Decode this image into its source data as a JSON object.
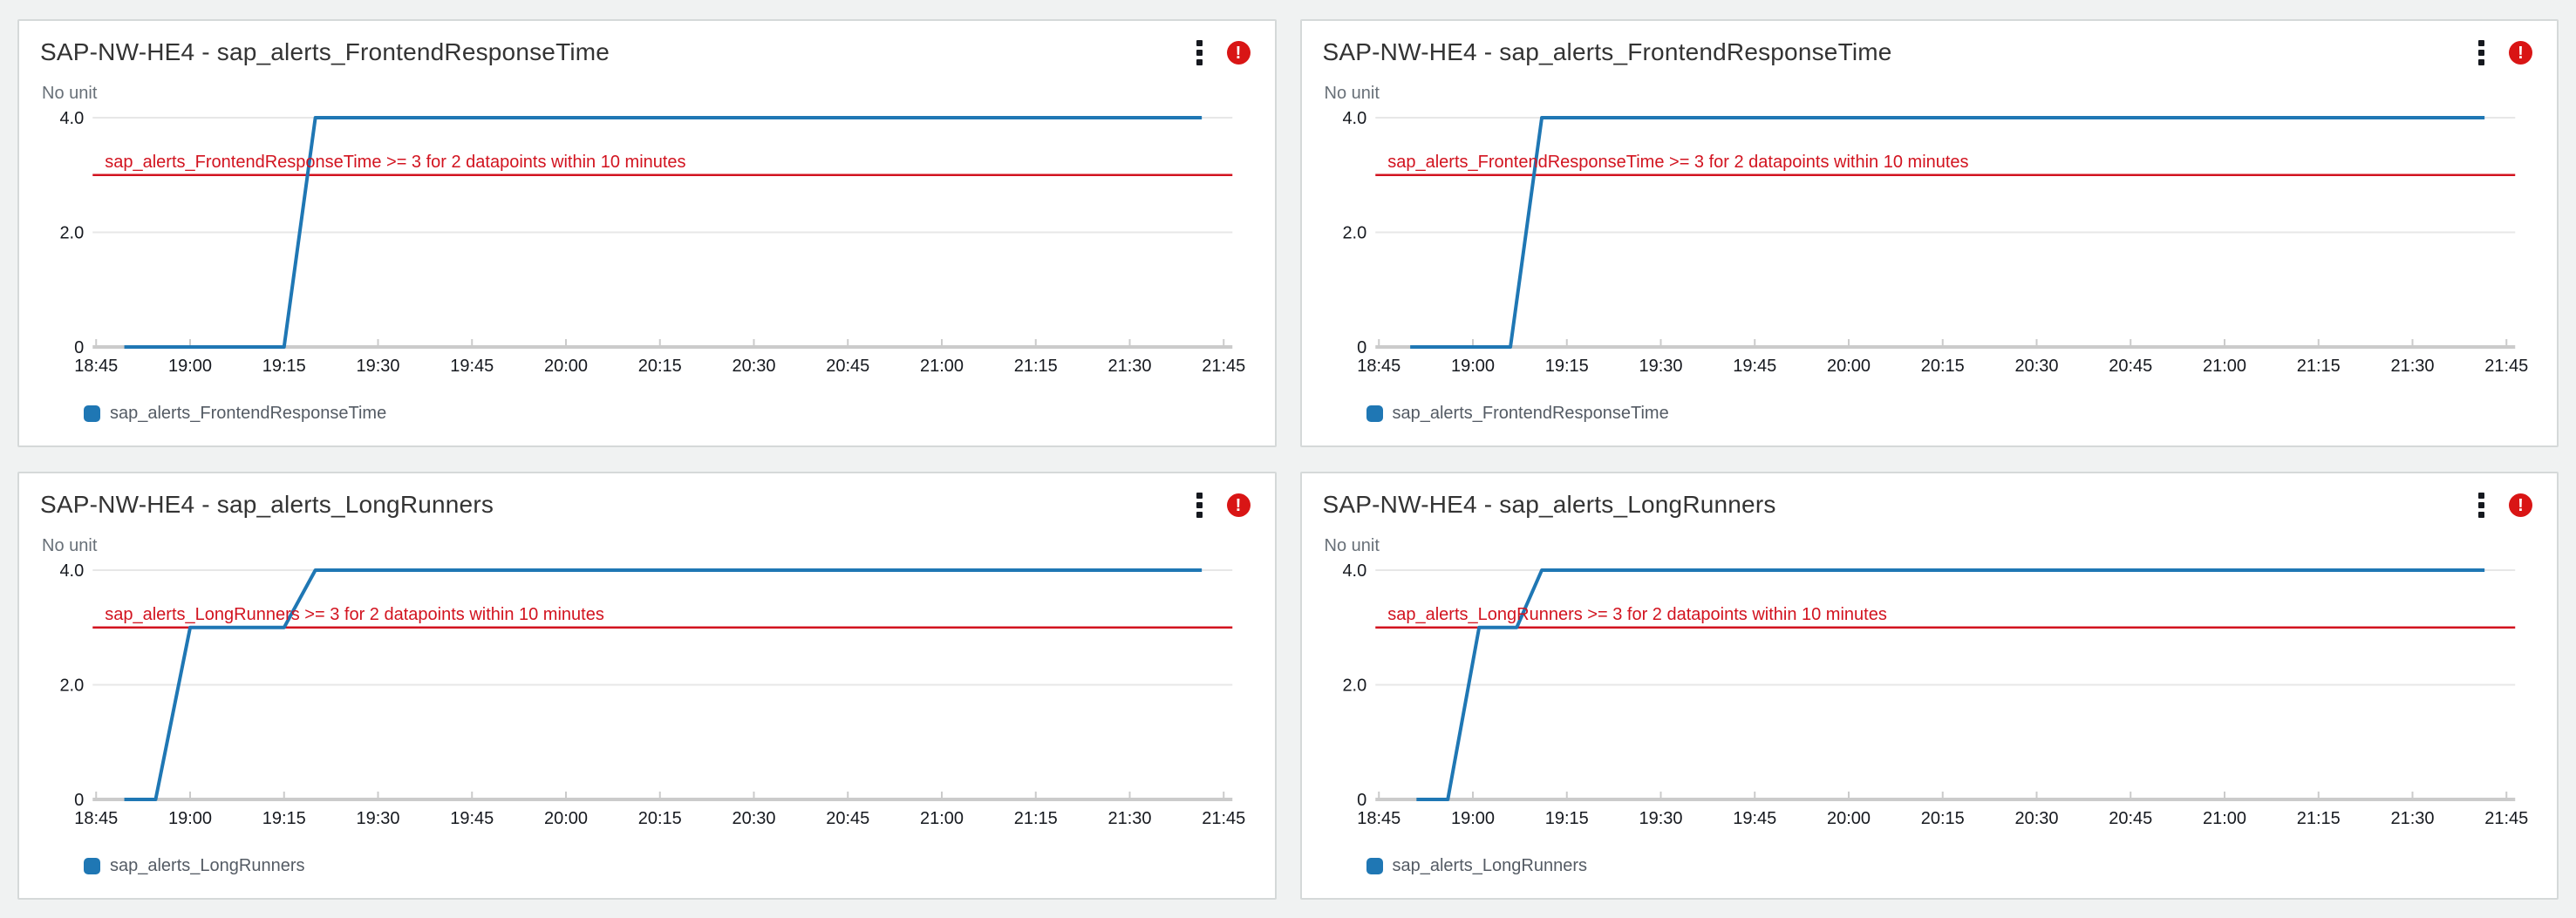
{
  "page": {
    "background_color": "#f0f2f2",
    "card_border_color": "#d5d9d9"
  },
  "colors": {
    "series_blue": "#1f77b4",
    "annotation_red": "#d2131f",
    "alarm_icon_red": "#d91515",
    "grid_gray": "#e7e7e7",
    "axis_gray": "#cbcbcb",
    "tick_text": "#16191f",
    "unit_text": "#687078"
  },
  "icons": {
    "menu": "kebab-menu-icon",
    "alarm": "alarm-exclamation-icon",
    "alarm_glyph": "!"
  },
  "chart_data": [
    {
      "type": "line",
      "title": "SAP-NW-HE4 - sap_alerts_FrontendResponseTime",
      "unit_label": "No unit",
      "alarm_state": "in-alarm",
      "ylim": [
        0,
        4.4
      ],
      "yticks": [
        {
          "v": 0,
          "label": "0"
        },
        {
          "v": 2,
          "label": "2.0"
        },
        {
          "v": 4,
          "label": "4.0"
        }
      ],
      "x_tick_labels": [
        "18:45",
        "19:00",
        "19:15",
        "19:30",
        "19:45",
        "20:00",
        "20:15",
        "20:30",
        "20:45",
        "21:00",
        "21:15",
        "21:30",
        "21:45"
      ],
      "x_tick_interval_minutes": 15,
      "x_range_minutes": [
        0,
        180
      ],
      "grid": "horizontal",
      "legend_position": "bottom",
      "annotation": {
        "value": 3,
        "label": "sap_alerts_FrontendResponseTime >= 3 for 2 datapoints within 10 minutes"
      },
      "series": [
        {
          "name": "sap_alerts_FrontendResponseTime",
          "color": "#1f77b4",
          "points_minutes_value": [
            [
              4.5,
              0
            ],
            [
              30,
              0
            ],
            [
              35,
              4
            ],
            [
              176.5,
              4
            ]
          ]
        }
      ]
    },
    {
      "type": "line",
      "title": "SAP-NW-HE4 - sap_alerts_FrontendResponseTime",
      "unit_label": "No unit",
      "alarm_state": "in-alarm",
      "ylim": [
        0,
        4.4
      ],
      "yticks": [
        {
          "v": 0,
          "label": "0"
        },
        {
          "v": 2,
          "label": "2.0"
        },
        {
          "v": 4,
          "label": "4.0"
        }
      ],
      "x_tick_labels": [
        "18:45",
        "19:00",
        "19:15",
        "19:30",
        "19:45",
        "20:00",
        "20:15",
        "20:30",
        "20:45",
        "21:00",
        "21:15",
        "21:30",
        "21:45"
      ],
      "x_tick_interval_minutes": 15,
      "x_range_minutes": [
        0,
        180
      ],
      "grid": "horizontal",
      "legend_position": "bottom",
      "annotation": {
        "value": 3,
        "label": "sap_alerts_FrontendResponseTime >= 3 for 2 datapoints within 10 minutes"
      },
      "series": [
        {
          "name": "sap_alerts_FrontendResponseTime",
          "color": "#1f77b4",
          "points_minutes_value": [
            [
              5,
              0
            ],
            [
              21,
              0
            ],
            [
              26,
              4
            ],
            [
              176.5,
              4
            ]
          ]
        }
      ]
    },
    {
      "type": "line",
      "title": "SAP-NW-HE4 - sap_alerts_LongRunners",
      "unit_label": "No unit",
      "alarm_state": "in-alarm",
      "ylim": [
        0,
        4.4
      ],
      "yticks": [
        {
          "v": 0,
          "label": "0"
        },
        {
          "v": 2,
          "label": "2.0"
        },
        {
          "v": 4,
          "label": "4.0"
        }
      ],
      "x_tick_labels": [
        "18:45",
        "19:00",
        "19:15",
        "19:30",
        "19:45",
        "20:00",
        "20:15",
        "20:30",
        "20:45",
        "21:00",
        "21:15",
        "21:30",
        "21:45"
      ],
      "x_tick_interval_minutes": 15,
      "x_range_minutes": [
        0,
        180
      ],
      "grid": "horizontal",
      "legend_position": "bottom",
      "annotation": {
        "value": 3,
        "label": "sap_alerts_LongRunners >= 3 for 2 datapoints within 10 minutes"
      },
      "series": [
        {
          "name": "sap_alerts_LongRunners",
          "color": "#1f77b4",
          "points_minutes_value": [
            [
              4.5,
              0
            ],
            [
              9.5,
              0
            ],
            [
              15,
              3
            ],
            [
              30,
              3
            ],
            [
              35,
              4
            ],
            [
              176.5,
              4
            ]
          ]
        }
      ]
    },
    {
      "type": "line",
      "title": "SAP-NW-HE4 - sap_alerts_LongRunners",
      "unit_label": "No unit",
      "alarm_state": "in-alarm",
      "ylim": [
        0,
        4.4
      ],
      "yticks": [
        {
          "v": 0,
          "label": "0"
        },
        {
          "v": 2,
          "label": "2.0"
        },
        {
          "v": 4,
          "label": "4.0"
        }
      ],
      "x_tick_labels": [
        "18:45",
        "19:00",
        "19:15",
        "19:30",
        "19:45",
        "20:00",
        "20:15",
        "20:30",
        "20:45",
        "21:00",
        "21:15",
        "21:30",
        "21:45"
      ],
      "x_tick_interval_minutes": 15,
      "x_range_minutes": [
        0,
        180
      ],
      "grid": "horizontal",
      "legend_position": "bottom",
      "annotation": {
        "value": 3,
        "label": "sap_alerts_LongRunners >= 3 for 2 datapoints within 10 minutes"
      },
      "series": [
        {
          "name": "sap_alerts_LongRunners",
          "color": "#1f77b4",
          "points_minutes_value": [
            [
              6,
              0
            ],
            [
              11,
              0
            ],
            [
              16,
              3
            ],
            [
              22,
              3
            ],
            [
              26,
              4
            ],
            [
              176.5,
              4
            ]
          ]
        }
      ]
    }
  ]
}
